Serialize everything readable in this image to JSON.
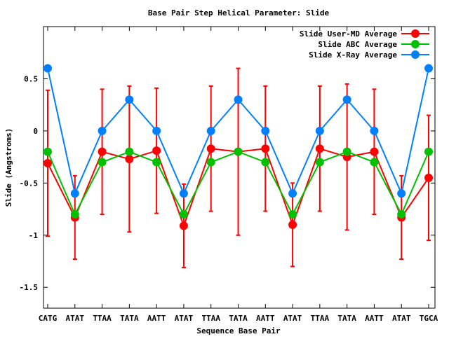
{
  "chart_data": {
    "type": "line",
    "title": "Base Pair Step Helical Parameter: Slide",
    "xlabel": "Sequence Base Pair",
    "ylabel": "Slide (Angstroms)",
    "ylim": [
      -1.7,
      1.0
    ],
    "yticks": [
      0.5,
      0,
      -0.5,
      -1,
      -1.5
    ],
    "ytick_labels": [
      "0.5",
      "0",
      "-0.5",
      "-1",
      "-1.5"
    ],
    "grid": false,
    "legend_position": "top-right",
    "categories": [
      "CATG",
      "ATAT",
      "TTAA",
      "TATA",
      "AATT",
      "ATAT",
      "TTAA",
      "TATA",
      "AATT",
      "ATAT",
      "TTAA",
      "TATA",
      "AATT",
      "ATAT",
      "TGCA"
    ],
    "series": [
      {
        "name": "Slide User-MD Average",
        "color": "#ff0000",
        "values": [
          -0.31,
          -0.83,
          -0.2,
          -0.27,
          -0.19,
          -0.91,
          -0.17,
          -0.2,
          -0.17,
          -0.9,
          -0.17,
          -0.25,
          -0.2,
          -0.83,
          -0.45
        ],
        "error": [
          0.7,
          0.4,
          0.6,
          0.7,
          0.6,
          0.4,
          0.6,
          0.8,
          0.6,
          0.4,
          0.6,
          0.7,
          0.6,
          0.4,
          0.6
        ]
      },
      {
        "name": "Slide ABC Average",
        "color": "#00c000",
        "values": [
          -0.2,
          -0.8,
          -0.3,
          -0.2,
          -0.3,
          -0.8,
          -0.3,
          -0.2,
          -0.3,
          -0.8,
          -0.3,
          -0.2,
          -0.3,
          -0.8,
          -0.2
        ]
      },
      {
        "name": "Slide X-Ray Average",
        "color": "#0080ff",
        "values": [
          0.6,
          -0.6,
          0,
          0.3,
          0,
          -0.6,
          0,
          0.3,
          0,
          -0.6,
          0,
          0.3,
          0,
          -0.6,
          0.6
        ]
      }
    ]
  }
}
